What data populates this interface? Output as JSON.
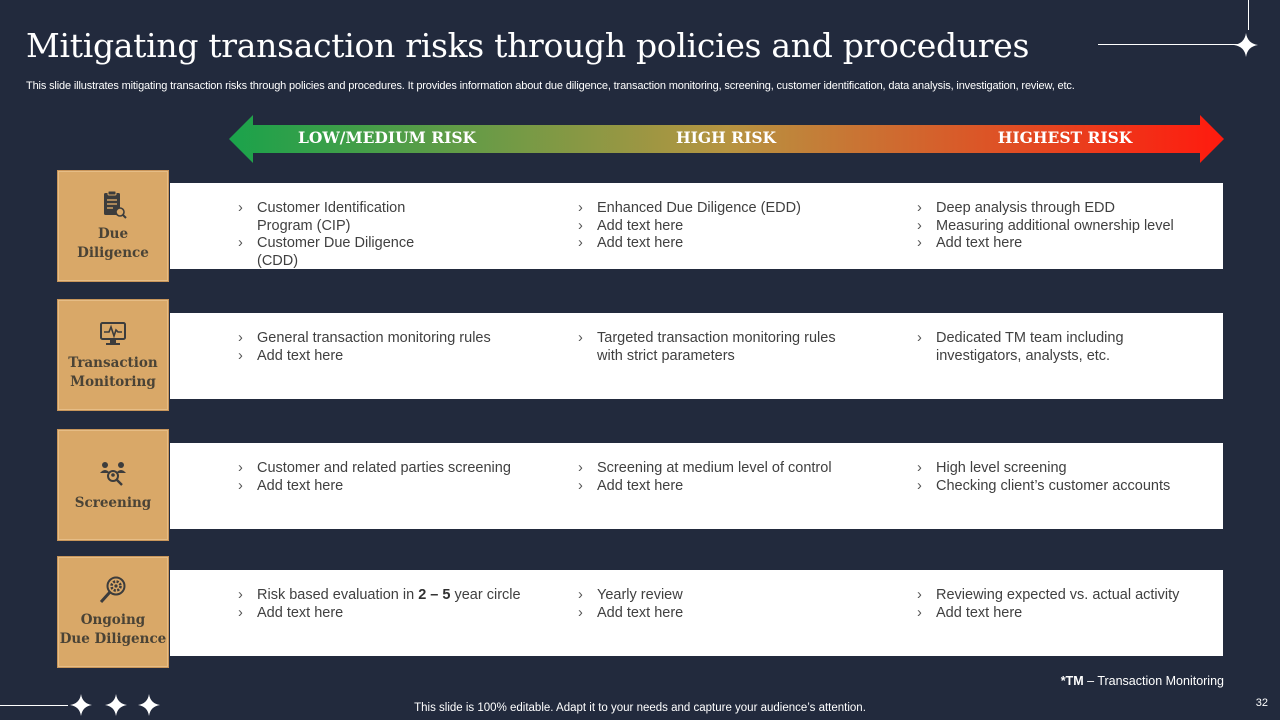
{
  "title": "Mitigating transaction risks through policies and procedures",
  "subtitle": "This slide illustrates mitigating transaction risks through policies and procedures. It provides information about due diligence, transaction monitoring, screening, customer identification, data analysis, investigation, review, etc.",
  "risk_scale": {
    "low_medium": "LOW/MEDIUM RISK",
    "high": "HIGH RISK",
    "highest": "HIGHEST RISK",
    "colors": {
      "low": "#1aa24b",
      "mid": "#b69441",
      "high": "#ff1a0e"
    }
  },
  "rows": [
    {
      "category_lines": [
        "Due",
        "Diligence"
      ],
      "icon": "clipboard-check-icon",
      "low_medium": [
        "Customer Identification Program (CIP)",
        "Customer Due Diligence (CDD)"
      ],
      "high": [
        "Enhanced Due Diligence (EDD)",
        "Add text here",
        "Add text here"
      ],
      "highest": [
        "Deep analysis through EDD",
        "Measuring additional ownership level",
        "Add text here"
      ]
    },
    {
      "category_lines": [
        "Transaction",
        "Monitoring"
      ],
      "icon": "monitor-pulse-icon",
      "low_medium": [
        "General transaction monitoring rules",
        "Add text here"
      ],
      "high": [
        "Targeted transaction monitoring rules with strict parameters"
      ],
      "highest": [
        "Dedicated TM team including investigators, analysts, etc."
      ]
    },
    {
      "category_lines": [
        "Screening"
      ],
      "icon": "people-search-icon",
      "low_medium": [
        "Customer and related parties screening",
        "Add text here"
      ],
      "high": [
        "Screening at medium level of control",
        "Add text here"
      ],
      "highest": [
        "High level screening",
        "Checking client’s customer accounts"
      ]
    },
    {
      "category_lines": [
        "Ongoing",
        "Due Diligence"
      ],
      "icon": "magnifier-gear-icon",
      "low_medium": [
        {
          "before": "Risk based evaluation in ",
          "bold": "2 – 5",
          "after": " year circle"
        },
        "Add text here"
      ],
      "high": [
        "Yearly review",
        "Add text here"
      ],
      "highest": [
        "Reviewing expected vs. actual activity",
        "Add text here"
      ]
    }
  ],
  "footnote": {
    "bold": "*TM",
    "text": " – Transaction Monitoring"
  },
  "footer": "This slide is 100% editable. Adapt it to your needs and capture your audience’s attention.",
  "page_number": "32"
}
